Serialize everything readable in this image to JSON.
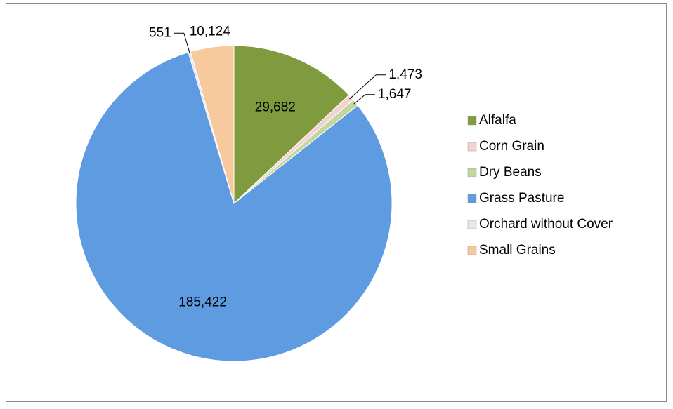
{
  "chart_data": {
    "type": "pie",
    "categories": [
      "Alfalfa",
      "Corn Grain",
      "Dry Beans",
      "Grass Pasture",
      "Orchard without Cover",
      "Small Grains"
    ],
    "values": [
      29682,
      1473,
      1647,
      185422,
      551,
      10124
    ],
    "value_labels": [
      "29,682",
      "1,473",
      "1,647",
      "185,422",
      "551",
      "10,124"
    ],
    "colors": [
      "#7f9b3d",
      "#f2d3d3",
      "#c3d69b",
      "#5e9be0",
      "#e6e6ee",
      "#f8c99c"
    ],
    "legend": "right"
  }
}
